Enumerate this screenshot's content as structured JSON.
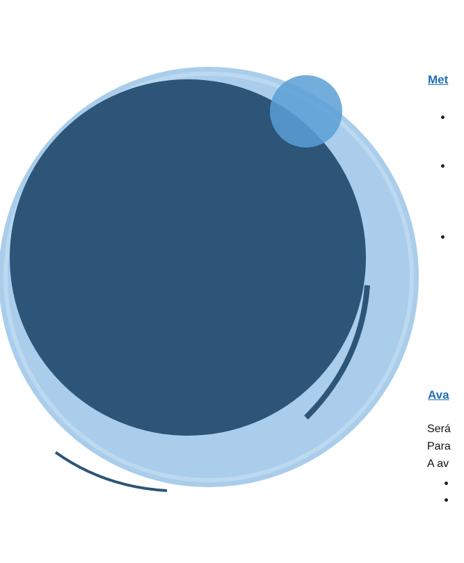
{
  "sections": [
    {
      "heading": "Met"
    },
    {
      "heading": "Ava",
      "lines": [
        "Será",
        "Para",
        "A av"
      ]
    }
  ]
}
